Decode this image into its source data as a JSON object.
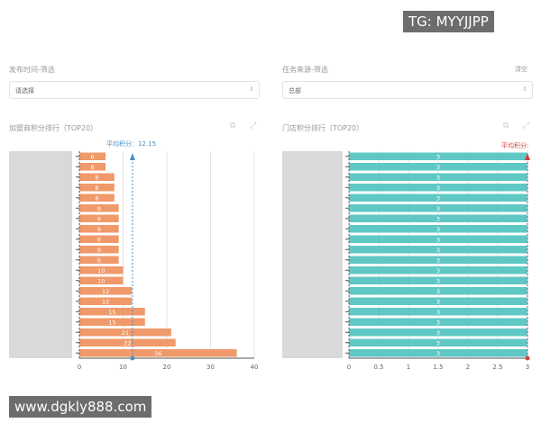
{
  "watermark_top": "TG: MYYJJPP",
  "watermark_bottom": "www.dgkly888.com",
  "left": {
    "filter_label": "发布时间-筛选",
    "filter_value": "请选择",
    "chart_title": "加盟商积分排行（TOP20）",
    "avg_label": "平均积分：12.15",
    "color": "#f0996a"
  },
  "right": {
    "filter_label": "任务来源-筛选",
    "clear_label": "清空",
    "filter_value": "总部",
    "chart_title": "门店积分排行（TOP20）",
    "avg_label": "平均积分:",
    "color": "#5fc8c4"
  },
  "chart_data": [
    {
      "type": "bar",
      "orientation": "horizontal",
      "values": [
        6,
        6,
        8,
        8,
        8,
        9,
        9,
        9,
        9,
        9,
        9,
        10,
        10,
        12,
        12,
        15,
        15,
        21,
        22,
        36
      ],
      "xlim": [
        0,
        40
      ],
      "xticks": [
        "0",
        "10",
        "20",
        "30",
        "40"
      ],
      "average": 12.15,
      "grid": true
    },
    {
      "type": "bar",
      "orientation": "horizontal",
      "values": [
        3,
        3,
        3,
        3,
        3,
        3,
        3,
        3,
        3,
        3,
        3,
        3,
        3,
        3,
        3,
        3,
        3,
        3,
        3,
        3
      ],
      "xlim": [
        0,
        3
      ],
      "xticks": [
        "0",
        "0.5",
        "1",
        "1.5",
        "2",
        "2.5",
        "3"
      ],
      "grid": true
    }
  ]
}
